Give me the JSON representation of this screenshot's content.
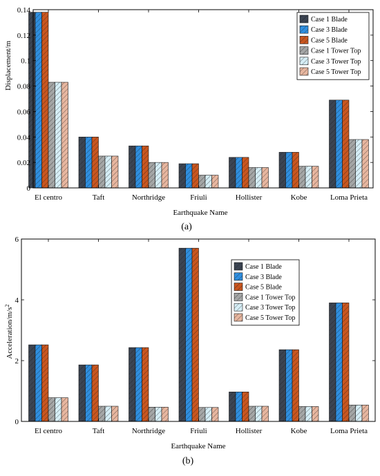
{
  "palette": {
    "case1_blade": "#3b4452",
    "case3_blade": "#2f8fe0",
    "case5_blade": "#c9561f",
    "case1_tower": "#a4a6a6",
    "case3_tower": "#d6eef6",
    "case5_tower": "#e7b69f",
    "stroke": "#1a1a1a",
    "hatch": "#1a1a1a"
  },
  "chart_data": [
    {
      "type": "bar",
      "caption": "(a)",
      "xlabel": "Earthquake Name",
      "ylabel": "Displacement/m",
      "ylim": [
        0,
        0.14
      ],
      "yticks": [
        0,
        0.02,
        0.04,
        0.06,
        0.08,
        0.1,
        0.12,
        0.14
      ],
      "ytick_labels": [
        "0",
        "0.02",
        "0.04",
        "0.06",
        "0.08",
        "0.1",
        "0.12",
        "0.14"
      ],
      "categories": [
        "El centro",
        "Taft",
        "Northridge",
        "Friuli",
        "Hollister",
        "Kobe",
        "Loma Prieta"
      ],
      "legend_position": "top-right",
      "series": [
        {
          "name": "Case 1 Blade",
          "values": [
            0.138,
            0.04,
            0.033,
            0.019,
            0.024,
            0.028,
            0.069
          ]
        },
        {
          "name": "Case 3 Blade",
          "values": [
            0.138,
            0.04,
            0.033,
            0.019,
            0.024,
            0.028,
            0.069
          ]
        },
        {
          "name": "Case 5 Blade",
          "values": [
            0.138,
            0.04,
            0.033,
            0.019,
            0.024,
            0.028,
            0.069
          ]
        },
        {
          "name": "Case 1 Tower Top",
          "values": [
            0.083,
            0.025,
            0.02,
            0.01,
            0.016,
            0.017,
            0.038
          ]
        },
        {
          "name": "Case 3 Tower Top",
          "values": [
            0.083,
            0.025,
            0.02,
            0.01,
            0.016,
            0.017,
            0.038
          ]
        },
        {
          "name": "Case 5 Tower Top",
          "values": [
            0.083,
            0.025,
            0.02,
            0.01,
            0.016,
            0.017,
            0.038
          ]
        }
      ]
    },
    {
      "type": "bar",
      "caption": "(b)",
      "xlabel": "Earthquake Name",
      "ylabel": "Acceleration/m/s",
      "ylabel_superscript": "2",
      "ylim": [
        0,
        6
      ],
      "yticks": [
        0,
        2,
        4,
        6
      ],
      "ytick_labels": [
        "0",
        "2",
        "4",
        "6"
      ],
      "categories": [
        "El centro",
        "Taft",
        "Northridge",
        "Friuli",
        "Hollister",
        "Kobe",
        "Loma Prieta"
      ],
      "legend_position": "center-right",
      "series": [
        {
          "name": "Case 1 Blade",
          "values": [
            2.52,
            1.86,
            2.43,
            5.7,
            0.97,
            2.36,
            3.9
          ]
        },
        {
          "name": "Case 3 Blade",
          "values": [
            2.52,
            1.86,
            2.43,
            5.7,
            0.97,
            2.36,
            3.9
          ]
        },
        {
          "name": "Case 5 Blade",
          "values": [
            2.52,
            1.86,
            2.43,
            5.7,
            0.97,
            2.36,
            3.9
          ]
        },
        {
          "name": "Case 1 Tower Top",
          "values": [
            0.78,
            0.5,
            0.47,
            0.46,
            0.5,
            0.49,
            0.54
          ]
        },
        {
          "name": "Case 3 Tower Top",
          "values": [
            0.78,
            0.5,
            0.47,
            0.46,
            0.5,
            0.49,
            0.54
          ]
        },
        {
          "name": "Case 5 Tower Top",
          "values": [
            0.78,
            0.5,
            0.47,
            0.46,
            0.5,
            0.49,
            0.54
          ]
        }
      ]
    }
  ]
}
